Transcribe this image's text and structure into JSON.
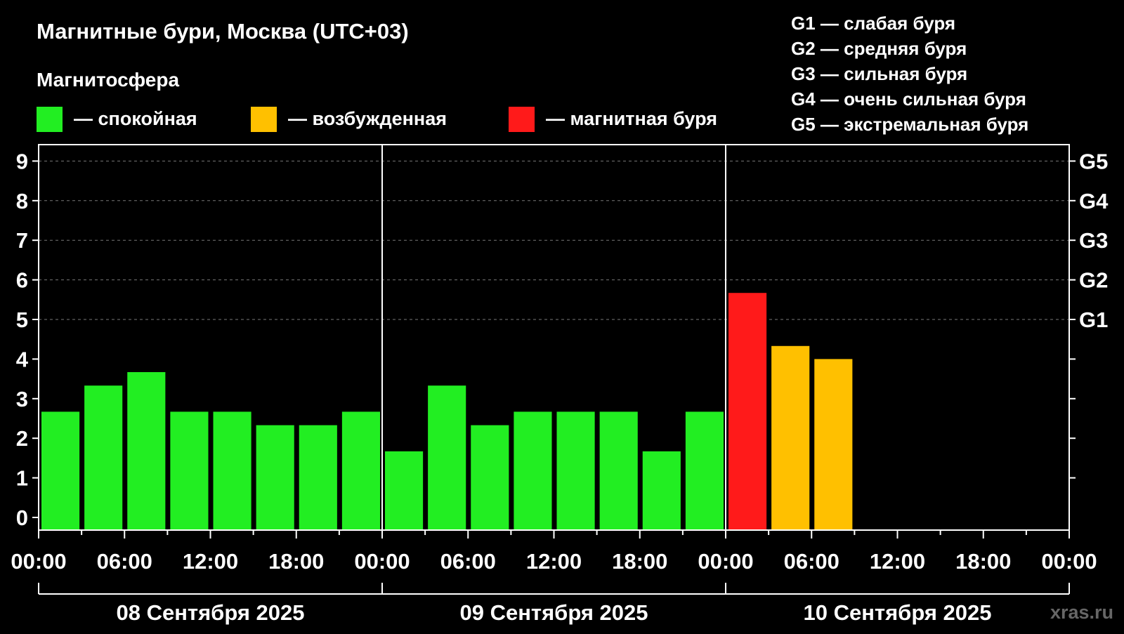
{
  "title": "Магнитные бури, Москва (UTC+03)",
  "legend_title": "Магнитосфера",
  "legend": [
    {
      "label": "— спокойная",
      "color": "#22ee22"
    },
    {
      "label": "— возбужденная",
      "color": "#ffc000"
    },
    {
      "label": "— магнитная буря",
      "color": "#ff1a1a"
    }
  ],
  "g_scale": [
    "G1 — слабая буря",
    "G2 — средняя буря",
    "G3 — сильная буря",
    "G4 — очень сильная буря",
    "G5 — экстремальная буря"
  ],
  "watermark": "xras.ru",
  "chart_data": {
    "type": "bar",
    "ylim": [
      0,
      9
    ],
    "yticks": [
      "0",
      "1",
      "2",
      "3",
      "4",
      "5",
      "6",
      "7",
      "8",
      "9"
    ],
    "right_ticks": [
      {
        "value": 5,
        "label": "G1"
      },
      {
        "value": 6,
        "label": "G2"
      },
      {
        "value": 7,
        "label": "G3"
      },
      {
        "value": 8,
        "label": "G4"
      },
      {
        "value": 9,
        "label": "G5"
      }
    ],
    "xtick_labels": [
      "00:00",
      "06:00",
      "12:00",
      "18:00",
      "00:00",
      "06:00",
      "12:00",
      "18:00",
      "00:00",
      "06:00",
      "12:00",
      "18:00",
      "00:00"
    ],
    "days": [
      "08 Сентября 2025",
      "09 Сентября 2025",
      "10 Сентября 2025"
    ],
    "grid": "dashed horizontal at 5–9",
    "bars": [
      {
        "value": 2.67,
        "level": "quiet"
      },
      {
        "value": 3.33,
        "level": "quiet"
      },
      {
        "value": 3.67,
        "level": "quiet"
      },
      {
        "value": 2.67,
        "level": "quiet"
      },
      {
        "value": 2.67,
        "level": "quiet"
      },
      {
        "value": 2.33,
        "level": "quiet"
      },
      {
        "value": 2.33,
        "level": "quiet"
      },
      {
        "value": 2.67,
        "level": "quiet"
      },
      {
        "value": 1.67,
        "level": "quiet"
      },
      {
        "value": 3.33,
        "level": "quiet"
      },
      {
        "value": 2.33,
        "level": "quiet"
      },
      {
        "value": 2.67,
        "level": "quiet"
      },
      {
        "value": 2.67,
        "level": "quiet"
      },
      {
        "value": 2.67,
        "level": "quiet"
      },
      {
        "value": 1.67,
        "level": "quiet"
      },
      {
        "value": 2.67,
        "level": "quiet"
      },
      {
        "value": 5.67,
        "level": "storm"
      },
      {
        "value": 4.33,
        "level": "active"
      },
      {
        "value": 4.0,
        "level": "active"
      }
    ],
    "level_colors": {
      "quiet": "#22ee22",
      "active": "#ffc000",
      "storm": "#ff1a1a"
    }
  }
}
